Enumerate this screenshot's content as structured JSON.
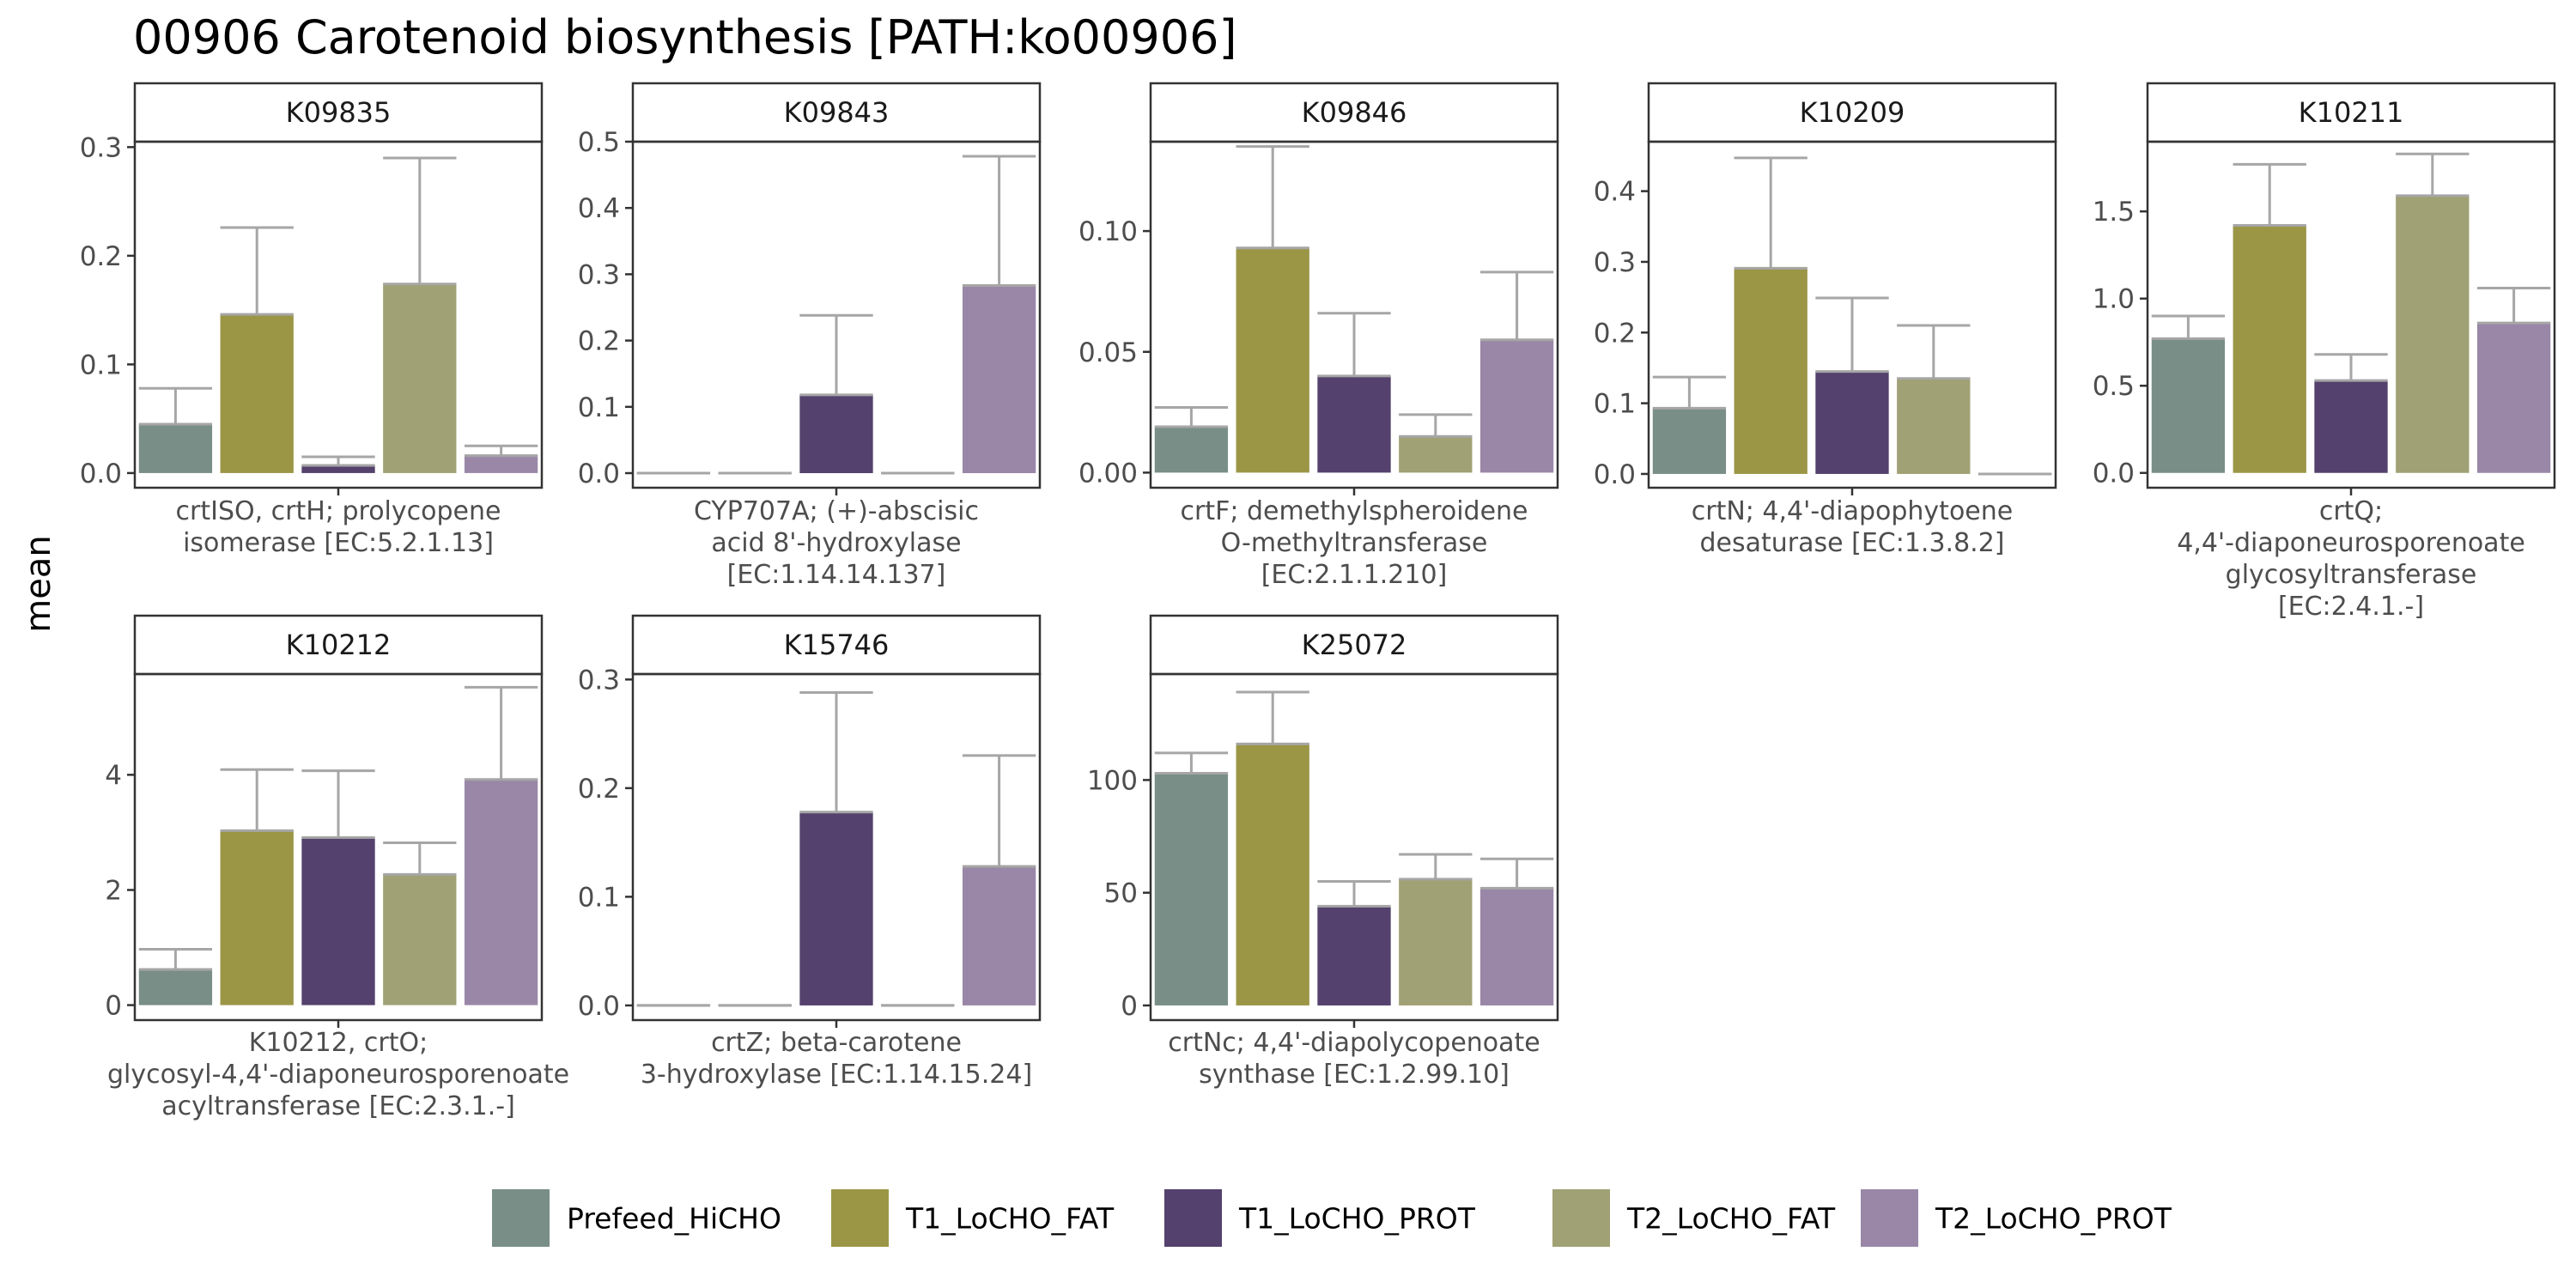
{
  "chart_data": {
    "type": "bar",
    "title": "00906 Carotenoid biosynthesis [PATH:ko00906]",
    "ylabel": "mean",
    "xlabel": "",
    "grid": false,
    "legend_position": "bottom",
    "groups": [
      "Prefeed_HiCHO",
      "T1_LoCHO_FAT",
      "T1_LoCHO_PROT",
      "T2_LoCHO_FAT",
      "T2_LoCHO_PROT"
    ],
    "colors": [
      "#798e86",
      "#9b9646",
      "#54416d",
      "#a0a174",
      "#9a87a7"
    ],
    "error_color": "#a6a6a6",
    "panels": [
      {
        "id": "K09835",
        "xlabel": [
          "crtISO, crtH; prolycopene",
          "isomerase [EC:5.2.1.13]"
        ],
        "ylim": [
          -0.0135,
          0.305
        ],
        "yticks": [
          0.0,
          0.1,
          0.2,
          0.3
        ],
        "ytick_labels": [
          "0.0",
          "0.1",
          "0.2",
          "0.3"
        ],
        "values": [
          0.045,
          0.146,
          0.007,
          0.174,
          0.016
        ],
        "error_upper": [
          0.078,
          0.226,
          0.015,
          0.29,
          0.025
        ]
      },
      {
        "id": "K09843",
        "xlabel": [
          "CYP707A; (+)-abscisic",
          "acid 8'-hydroxylase",
          "[EC:1.14.14.137]"
        ],
        "ylim": [
          -0.022,
          0.5
        ],
        "yticks": [
          0.0,
          0.1,
          0.2,
          0.3,
          0.4,
          0.5
        ],
        "ytick_labels": [
          "0.0",
          "0.1",
          "0.2",
          "0.3",
          "0.4",
          "0.5"
        ],
        "values": [
          0.0,
          0.0,
          0.118,
          0.0,
          0.283
        ],
        "error_upper": [
          0.0,
          0.0,
          0.238,
          0.0,
          0.478
        ]
      },
      {
        "id": "K09846",
        "xlabel": [
          "crtF; demethylspheroidene",
          "O-methyltransferase",
          "[EC:2.1.1.210]"
        ],
        "ylim": [
          -0.00625,
          0.137
        ],
        "yticks": [
          0.0,
          0.05,
          0.1
        ],
        "ytick_labels": [
          "0.00",
          "0.05",
          "0.10"
        ],
        "values": [
          0.019,
          0.093,
          0.04,
          0.015,
          0.055
        ],
        "error_upper": [
          0.027,
          0.135,
          0.066,
          0.024,
          0.083
        ]
      },
      {
        "id": "K10209",
        "xlabel": [
          "crtN; 4,4'-diapophytoene",
          "desaturase [EC:1.3.8.2]"
        ],
        "ylim": [
          -0.0195,
          0.47
        ],
        "yticks": [
          0.0,
          0.1,
          0.2,
          0.3,
          0.4
        ],
        "ytick_labels": [
          "0.0",
          "0.1",
          "0.2",
          "0.3",
          "0.4"
        ],
        "values": [
          0.093,
          0.291,
          0.145,
          0.135,
          0.0
        ],
        "error_upper": [
          0.137,
          0.447,
          0.249,
          0.21,
          0.0
        ]
      },
      {
        "id": "K10211",
        "xlabel": [
          "crtQ;",
          "4,4'-diaponeurosporenoate",
          "glycosyltransferase",
          "[EC:2.4.1.-]"
        ],
        "ylim": [
          -0.085,
          1.9
        ],
        "yticks": [
          0.0,
          0.5,
          1.0,
          1.5
        ],
        "ytick_labels": [
          "0.0",
          "0.5",
          "1.0",
          "1.5"
        ],
        "values": [
          0.77,
          1.42,
          0.53,
          1.59,
          0.86
        ],
        "error_upper": [
          0.9,
          1.77,
          0.68,
          1.83,
          1.06
        ]
      },
      {
        "id": "K10212",
        "xlabel": [
          "K10212, crtO;",
          "glycosyl-4,4'-diaponeurosporenoate",
          "acyltransferase [EC:2.3.1.-]"
        ],
        "ylim": [
          -0.26,
          5.75
        ],
        "yticks": [
          0,
          2,
          4
        ],
        "ytick_labels": [
          "0",
          "2",
          "4"
        ],
        "values": [
          0.62,
          3.03,
          2.91,
          2.27,
          3.92
        ],
        "error_upper": [
          0.97,
          4.09,
          4.07,
          2.82,
          5.52
        ]
      },
      {
        "id": "K15746",
        "xlabel": [
          "crtZ; beta-carotene",
          "3-hydroxylase [EC:1.14.15.24]"
        ],
        "ylim": [
          -0.0135,
          0.305
        ],
        "yticks": [
          0.0,
          0.1,
          0.2,
          0.3
        ],
        "ytick_labels": [
          "0.0",
          "0.1",
          "0.2",
          "0.3"
        ],
        "values": [
          0.0,
          0.0,
          0.178,
          0.0,
          0.128
        ],
        "error_upper": [
          0.0,
          0.0,
          0.288,
          0.0,
          0.23
        ]
      },
      {
        "id": "K25072",
        "xlabel": [
          "crtNc; 4,4'-diapolycopenoate",
          "synthase [EC:1.2.99.10]"
        ],
        "ylim": [
          -6.5,
          147
        ],
        "yticks": [
          0,
          50,
          100
        ],
        "ytick_labels": [
          "0",
          "50",
          "100"
        ],
        "values": [
          103,
          116,
          44,
          56,
          52
        ],
        "error_upper": [
          112,
          139,
          55,
          67,
          65
        ]
      }
    ]
  }
}
